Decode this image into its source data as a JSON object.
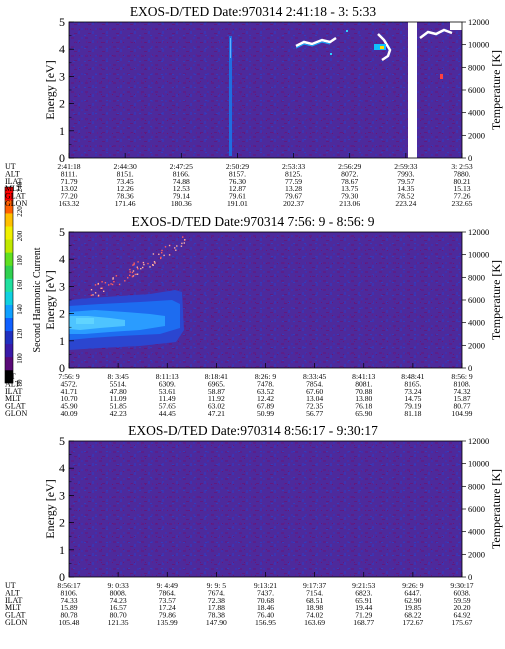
{
  "colorbar": {
    "label": "Second Harmonic Current",
    "ticks": [
      "80",
      "100",
      "120",
      "140",
      "160",
      "180",
      "200",
      "220",
      "240"
    ],
    "colors": [
      "#000000",
      "#5a0a78",
      "#3a1aa8",
      "#2030c0",
      "#1060ff",
      "#10a0ff",
      "#10d0e0",
      "#20e0a0",
      "#30d050",
      "#60e020",
      "#c0e800",
      "#f0f000",
      "#ffc000",
      "#ff6000",
      "#ff0000"
    ]
  },
  "panels": [
    {
      "title": "EXOS-D/TED   Date:970314  2:41:18 - 3: 5:33",
      "ylabel": "Energy [eV]",
      "y2label": "Temperature [K]",
      "rows": [
        [
          "UT",
          "2:41:18",
          "2:44:30",
          "2:47:25",
          "2:50:29",
          "2:53:33",
          "2:56:29",
          "2:59:33",
          "3: 2:53"
        ],
        [
          "ALT",
          "8111.",
          "8151.",
          "8166.",
          "8157.",
          "8125.",
          "8072.",
          "7993.",
          "7880."
        ],
        [
          "ILAT",
          "71.79",
          "73.45",
          "74.88",
          "76.30",
          "77.59",
          "78.67",
          "79.57",
          "80.21"
        ],
        [
          "MLT",
          "13.02",
          "12.26",
          "12.53",
          "12.87",
          "13.28",
          "13.75",
          "14.35",
          "15.13"
        ],
        [
          "GLAT",
          "77.20",
          "78.36",
          "79.14",
          "79.61",
          "79.67",
          "79.30",
          "78.52",
          "77.26"
        ],
        [
          "GLON",
          "163.32",
          "171.46",
          "180.36",
          "191.01",
          "202.37",
          "213.06",
          "223.24",
          "232.65"
        ]
      ]
    },
    {
      "title": "EXOS-D/TED   Date:970314  7:56: 9 - 8:56: 9",
      "ylabel": "Energy [eV]",
      "y2label": "Temperature [K]",
      "rows": [
        [
          "UT",
          "7:56: 9",
          "8: 3:45",
          "8:11:13",
          "8:18:41",
          "8:26: 9",
          "8:33:45",
          "8:41:13",
          "8:48:41",
          "8:56: 9"
        ],
        [
          "ALT",
          "4572.",
          "5514.",
          "6309.",
          "6965.",
          "7478.",
          "7854.",
          "8081.",
          "8165.",
          "8108."
        ],
        [
          "ILAT",
          "41.71",
          "47.80",
          "53.61",
          "58.87",
          "63.52",
          "67.60",
          "70.88",
          "73.24",
          "74.32"
        ],
        [
          "MLT",
          "10.70",
          "11.09",
          "11.49",
          "11.92",
          "12.42",
          "13.04",
          "13.80",
          "14.75",
          "15.87"
        ],
        [
          "GLAT",
          "45.90",
          "51.85",
          "57.65",
          "63.02",
          "67.89",
          "72.35",
          "76.18",
          "79.19",
          "80.77"
        ],
        [
          "GLON",
          "40.09",
          "42.23",
          "44.45",
          "47.21",
          "50.99",
          "56.77",
          "65.90",
          "81.18",
          "104.99"
        ]
      ]
    },
    {
      "title": "EXOS-D/TED   Date:970314  8:56:17 - 9:30:17",
      "ylabel": "Energy [eV]",
      "y2label": "Temperature [K]",
      "rows": [
        [
          "UT",
          "8:56:17",
          "9: 0:33",
          "9: 4:49",
          "9: 9: 5",
          "9:13:21",
          "9:17:37",
          "9:21:53",
          "9:26: 9",
          "9:30:17"
        ],
        [
          "ALT",
          "8106.",
          "8008.",
          "7864.",
          "7674.",
          "7437.",
          "7154.",
          "6823.",
          "6447.",
          "6038."
        ],
        [
          "ILAT",
          "74.33",
          "74.23",
          "73.57",
          "72.38",
          "70.68",
          "68.51",
          "65.91",
          "62.90",
          "59.59"
        ],
        [
          "MLT",
          "15.89",
          "16.57",
          "17.24",
          "17.88",
          "18.46",
          "18.98",
          "19.44",
          "19.85",
          "20.20"
        ],
        [
          "GLAT",
          "80.78",
          "80.70",
          "79.86",
          "78.38",
          "76.40",
          "74.02",
          "71.29",
          "68.22",
          "64.92"
        ],
        [
          "GLON",
          "105.48",
          "121.35",
          "135.99",
          "147.90",
          "156.95",
          "163.69",
          "168.77",
          "172.67",
          "175.67"
        ]
      ]
    }
  ],
  "chart_data": [
    {
      "type": "heatmap",
      "title": "EXOS-D/TED   Date:970314  2:41:18 - 3: 5:33",
      "xlabel": "",
      "ylabel": "Energy [eV]",
      "y2label": "Temperature [K]",
      "x_ticks": [
        "2:41:18",
        "2:44:30",
        "2:47:25",
        "2:50:29",
        "2:53:33",
        "2:56:29",
        "2:59:33",
        "3: 2:53"
      ],
      "y_ticks": [
        0,
        1,
        2,
        3,
        4,
        5
      ],
      "y2_ticks": [
        0,
        2000,
        4000,
        6000,
        8000,
        10000,
        12000
      ],
      "ylim": [
        0,
        5
      ],
      "y2lim": [
        0,
        12000
      ],
      "value_label": "Second Harmonic Current",
      "value_range": [
        80,
        240
      ]
    },
    {
      "type": "heatmap",
      "title": "EXOS-D/TED   Date:970314  7:56: 9 - 8:56: 9",
      "xlabel": "",
      "ylabel": "Energy [eV]",
      "y2label": "Temperature [K]",
      "x_ticks": [
        "7:56: 9",
        "8: 3:45",
        "8:11:13",
        "8:18:41",
        "8:26: 9",
        "8:33:45",
        "8:41:13",
        "8:48:41",
        "8:56: 9"
      ],
      "y_ticks": [
        0,
        1,
        2,
        3,
        4,
        5
      ],
      "y2_ticks": [
        0,
        2000,
        4000,
        6000,
        8000,
        10000,
        12000
      ],
      "ylim": [
        0,
        5
      ],
      "y2lim": [
        0,
        12000
      ],
      "value_label": "Second Harmonic Current",
      "value_range": [
        80,
        240
      ]
    },
    {
      "type": "heatmap",
      "title": "EXOS-D/TED   Date:970314  8:56:17 - 9:30:17",
      "xlabel": "",
      "ylabel": "Energy [eV]",
      "y2label": "Temperature [K]",
      "x_ticks": [
        "8:56:17",
        "9: 0:33",
        "9: 4:49",
        "9: 9: 5",
        "9:13:21",
        "9:17:37",
        "9:21:53",
        "9:26: 9",
        "9:30:17"
      ],
      "y_ticks": [
        0,
        1,
        2,
        3,
        4,
        5
      ],
      "y2_ticks": [
        0,
        2000,
        4000,
        6000,
        8000,
        10000,
        12000
      ],
      "ylim": [
        0,
        5
      ],
      "y2lim": [
        0,
        12000
      ],
      "value_label": "Second Harmonic Current",
      "value_range": [
        80,
        240
      ]
    }
  ]
}
